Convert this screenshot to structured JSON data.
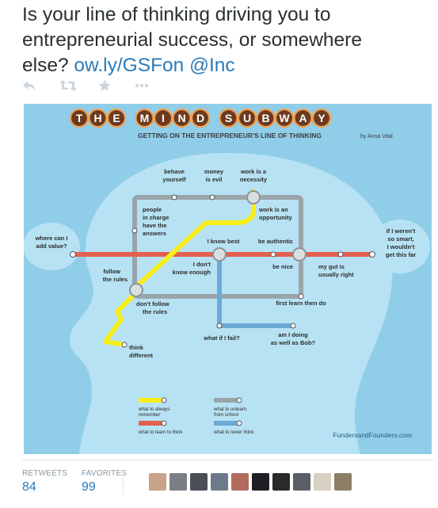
{
  "tweet": {
    "text_line1": "Is your line of thinking driving you to",
    "text_line2": "entrepreneurial success, or somewhere",
    "text_line3": "else?",
    "link": "ow.ly/GSFon",
    "mention": "@Inc"
  },
  "actions": [
    {
      "name": "reply",
      "icon": "reply-icon"
    },
    {
      "name": "retweet",
      "icon": "retweet-icon"
    },
    {
      "name": "favorite",
      "icon": "star-icon"
    },
    {
      "name": "more",
      "icon": "more-icon"
    }
  ],
  "infographic": {
    "title": "THE MIND SUBWAY",
    "subtitle": "GETTING ON THE ENTREPRENEUR'S LINE OF THINKING",
    "author": "by Anna Vital",
    "credit": "FundersandFounders.com",
    "stations": {
      "behave_yourself_1": "behave",
      "behave_yourself_2": "yourself",
      "money_is_evil_1": "money",
      "money_is_evil_2": "is evil",
      "work_necessity_1": "work is a",
      "work_necessity_2": "necessity",
      "work_opportunity_1": "work is an",
      "work_opportunity_2": "opportunity",
      "people_charge_1": "people",
      "people_charge_2": "in charge",
      "people_charge_3": "have the",
      "people_charge_4": "answers",
      "where_value_1": "where can I",
      "where_value_2": "add value?",
      "i_know_best": "I know best",
      "be_authentic": "be authentic",
      "if_smart_1": "if I weren't",
      "if_smart_2": "so smart,",
      "if_smart_3": "I wouldn't",
      "if_smart_4": "get this far",
      "dont_know_1": "I don't",
      "dont_know_2": "know enough",
      "be_nice": "be nice",
      "gut_1": "my gut is",
      "gut_2": "usually right",
      "follow_rules_1": "follow",
      "follow_rules_2": "the rules",
      "dont_follow_1": "don't follow",
      "dont_follow_2": "the rules",
      "first_learn": "first learn then do",
      "what_fail": "what if I fail?",
      "bob_1": "am I doing",
      "bob_2": "as well as Bob?",
      "think_1": "think",
      "think_2": "different"
    },
    "legend": {
      "always_1": "what to always",
      "always_2": "remember",
      "unlearn_1": "what to unlearn",
      "unlearn_2": "from school",
      "learn": "what to learn to think",
      "never": "what to never think"
    },
    "colors": {
      "background": "#90cde9",
      "head": "#b7e2f3",
      "gray_line": "#9aa5ab",
      "red_line": "#e4614f",
      "blue_line": "#6aaad6",
      "yellow_line": "#f7ef1a",
      "title_circle": "#6b3a1f",
      "title_ring": "#f0a050"
    }
  },
  "stats": {
    "retweets_label": "RETWEETS",
    "retweets_value": "84",
    "favorites_label": "FAVORITES",
    "favorites_value": "99"
  },
  "avatars": [
    "avatar-1",
    "avatar-2",
    "avatar-3",
    "avatar-4",
    "avatar-5",
    "avatar-6",
    "avatar-7",
    "avatar-8",
    "avatar-9",
    "avatar-10"
  ]
}
